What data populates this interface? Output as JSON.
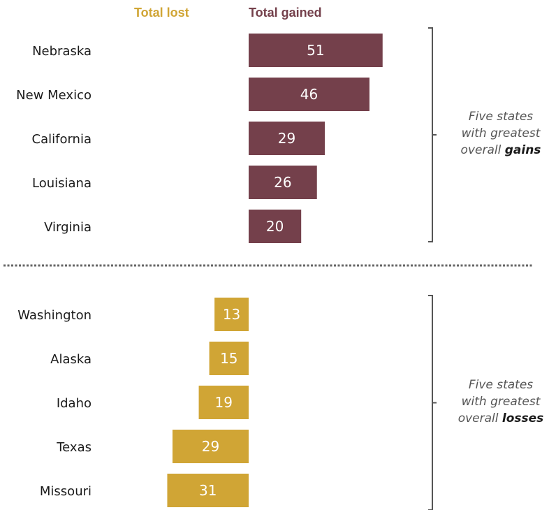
{
  "legend": {
    "lost_label": "Total lost",
    "gained_label": "Total gained"
  },
  "colors": {
    "gained": "#74404b",
    "lost": "#d0a535",
    "text": "#1a1a1a",
    "note": "#555555",
    "bracket": "#555555",
    "divider": "#666666"
  },
  "chart_data": [
    {
      "type": "bar",
      "orientation": "horizontal",
      "series": [
        {
          "name": "Total gained",
          "values": [
            51,
            46,
            29,
            26,
            20
          ]
        }
      ],
      "categories": [
        "Nebraska",
        "New Mexico",
        "California",
        "Louisiana",
        "Virginia"
      ],
      "note": {
        "lines": [
          "Five states",
          "with greatest"
        ],
        "last_line_prefix": "overall ",
        "last_line_emph": "gains"
      }
    },
    {
      "type": "bar",
      "orientation": "horizontal",
      "direction": "leftward",
      "series": [
        {
          "name": "Total lost",
          "values": [
            13,
            15,
            19,
            29,
            31
          ]
        }
      ],
      "categories": [
        "Washington",
        "Alaska",
        "Idaho",
        "Texas",
        "Missouri"
      ],
      "note": {
        "lines": [
          "Five states",
          "with greatest"
        ],
        "last_line_prefix": "overall ",
        "last_line_emph": "losses"
      }
    }
  ]
}
